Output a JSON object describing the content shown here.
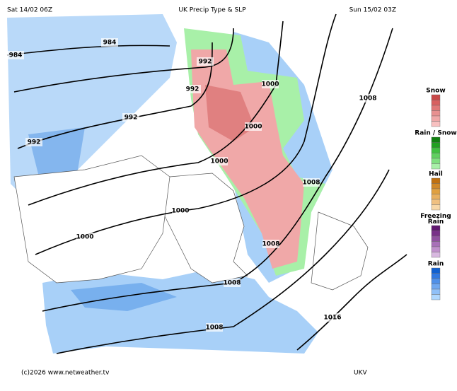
{
  "header": {
    "left": "Sat 14/02 06Z",
    "title": "UK Precip Type & SLP",
    "right": "Sun 15/02 03Z"
  },
  "footer": {
    "credit": "(c)2026 www.netweather.tv",
    "model": "UKV"
  },
  "legend": [
    {
      "label": "Snow",
      "colors": [
        "#c84848",
        "#d86060",
        "#e07878",
        "#e89090",
        "#f0a8a8",
        "#f8c0c0"
      ]
    },
    {
      "label": "Rain / Snow",
      "colors": [
        "#108010",
        "#20a020",
        "#40c040",
        "#60d060",
        "#80e080",
        "#a8f0a8"
      ]
    },
    {
      "label": "Hail",
      "colors": [
        "#c07010",
        "#d08828",
        "#e0a040",
        "#e8b060",
        "#f0c080",
        "#f8d8a8"
      ]
    },
    {
      "label": "Freezing Rain",
      "colors": [
        "#601870",
        "#783088",
        "#9050a0",
        "#a870b8",
        "#c090cc",
        "#d8b8e0"
      ]
    },
    {
      "label": "Rain",
      "colors": [
        "#1060d0",
        "#3078e0",
        "#5090e8",
        "#70a8f0",
        "#90c0f8",
        "#b0d8ff"
      ]
    }
  ],
  "isobar_labels": [
    984,
    984,
    992,
    992,
    992,
    992,
    1000,
    1000,
    1000,
    1000,
    1000,
    1008,
    1008,
    1008,
    1008,
    1008,
    1016
  ]
}
